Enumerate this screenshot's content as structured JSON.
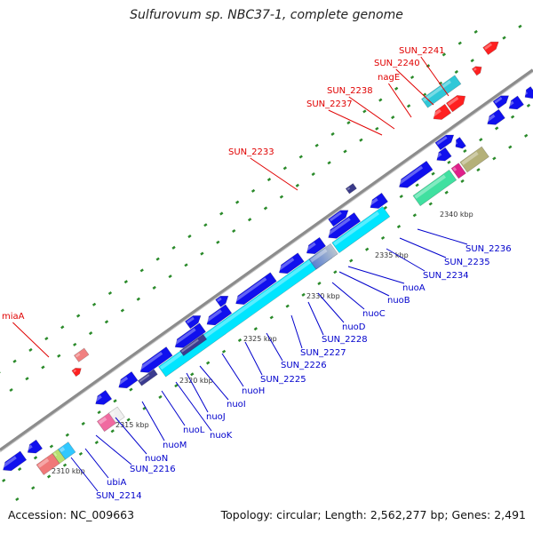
{
  "title": "Sulfurovum sp. NBC37-1, complete genome",
  "footer": {
    "accession": "Accession: NC_009663",
    "summary": "Topology: circular; Length: 2,562,277 bp; Genes: 2,491"
  },
  "colors": {
    "top_labels": "#e00000",
    "bottom_labels": "#0000cc",
    "backbone": "#8c8c8c",
    "cds": "#1010ee",
    "operon": "#00e5ff",
    "rna": "#ff2020",
    "ticks": "#2a8a2a"
  },
  "top_labels": [
    "SUN_2241",
    "SUN_2240",
    "nagE",
    "SUN_2238",
    "SUN_2237",
    "SUN_2233",
    "miaA"
  ],
  "bottom_labels": [
    "SUN_2236",
    "SUN_2235",
    "SUN_2234",
    "nuoA",
    "nuoB",
    "nuoC",
    "nuoD",
    "SUN_2228",
    "SUN_2227",
    "SUN_2226",
    "SUN_2225",
    "nuoH",
    "nuoI",
    "nuoJ",
    "nuoK",
    "nuoL",
    "nuoM",
    "nuoN",
    "SUN_2216",
    "ubiA",
    "SUN_2214"
  ],
  "scale_labels": [
    "2340 kbp",
    "2335 kbp",
    "2330 kbp",
    "2325 kbp",
    "2320 kbp",
    "2315 kbp",
    "2310 kbp"
  ]
}
